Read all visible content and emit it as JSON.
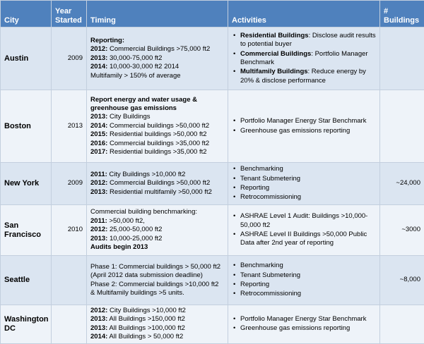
{
  "table": {
    "headers": [
      "City",
      "Year Started",
      "Timing",
      "Activities",
      "# Buildings"
    ],
    "rows": [
      {
        "city": "Austin",
        "year": 2009,
        "timing": [
          [
            {
              "text": "Reporting:",
              "bold": true
            }
          ],
          [
            {
              "text": "2012:",
              "bold": true
            },
            {
              "text": " Commercial Buildings >75,000 ft2",
              "bold": false
            }
          ],
          [
            {
              "text": "2013:",
              "bold": true
            },
            {
              "text": " 30,000-75,000 ft2",
              "bold": false
            }
          ],
          [
            {
              "text": "2014:",
              "bold": true
            },
            {
              "text": " 10,000-30,000 ft2 2014",
              "bold": false
            }
          ],
          [
            {
              "text": "Multifamily > 150% of average",
              "bold": false
            }
          ]
        ],
        "activities": [
          [
            {
              "text": "Residential Buildings",
              "bold": true
            },
            {
              "text": ": Disclose audit results to potential buyer",
              "bold": false
            }
          ],
          [
            {
              "text": "Commercial Buildings",
              "bold": true
            },
            {
              "text": ": Portfolio Manager Benchmark",
              "bold": false
            }
          ],
          [
            {
              "text": "Multifamily Buildings",
              "bold": true
            },
            {
              "text": ": Reduce energy by 20% & disclose performance",
              "bold": false
            }
          ]
        ],
        "buildings": null
      },
      {
        "city": "Boston",
        "year": 2013,
        "timing": [
          [
            {
              "text": "Report energy and water usage & greenhouse gas emissions",
              "bold": true
            }
          ],
          [
            {
              "text": "2013:",
              "bold": true
            },
            {
              "text": " City Buildings",
              "bold": false
            }
          ],
          [
            {
              "text": "2014:",
              "bold": true
            },
            {
              "text": " Commercial buildings >50,000 ft2",
              "bold": false
            }
          ],
          [
            {
              "text": "2015:",
              "bold": true
            },
            {
              "text": " Residential buildings >50,000 ft2",
              "bold": false
            }
          ],
          [
            {
              "text": "2016:",
              "bold": true
            },
            {
              "text": " Commercial buildings >35,000 ft2",
              "bold": false
            }
          ],
          [
            {
              "text": "2017:",
              "bold": true
            },
            {
              "text": " Residential buildings >35,000 ft2",
              "bold": false
            }
          ]
        ],
        "activities": [
          [
            {
              "text": "Portfolio Manager Energy Star Benchmark",
              "bold": false
            }
          ],
          [
            {
              "text": "Greenhouse gas emissions reporting",
              "bold": false
            }
          ]
        ],
        "buildings": null
      },
      {
        "city": "New York",
        "year": 2009,
        "timing": [
          [
            {
              "text": "2011:",
              "bold": true
            },
            {
              "text": " City Buildings >10,000 ft2",
              "bold": false
            }
          ],
          [
            {
              "text": "2012:",
              "bold": true
            },
            {
              "text": " Commercial Buildings >50,000 ft2",
              "bold": false
            }
          ],
          [
            {
              "text": "2013:",
              "bold": true
            },
            {
              "text": " Residential multifamily >50,000 ft2",
              "bold": false
            }
          ]
        ],
        "activities": [
          [
            {
              "text": "Benchmarking",
              "bold": false
            }
          ],
          [
            {
              "text": "Tenant Submetering",
              "bold": false
            }
          ],
          [
            {
              "text": "Reporting",
              "bold": false
            }
          ],
          [
            {
              "text": "Retrocommissioning",
              "bold": false
            }
          ]
        ],
        "buildings": "~24,000"
      },
      {
        "city": "San Francisco",
        "year": 2010,
        "timing": [
          [
            {
              "text": "Commercial building benchmarking:",
              "bold": false
            }
          ],
          [
            {
              "text": "2011:",
              "bold": true
            },
            {
              "text": " >50,000 ft2,",
              "bold": false
            }
          ],
          [
            {
              "text": "2012:",
              "bold": true
            },
            {
              "text": " 25,000-50,000 ft2",
              "bold": false
            }
          ],
          [
            {
              "text": "2013:",
              "bold": true
            },
            {
              "text": " 10,000-25,000 ft2",
              "bold": false
            }
          ],
          [
            {
              "text": "Audits begin 2013",
              "bold": true
            }
          ]
        ],
        "activities": [
          [
            {
              "text": "ASHRAE Level 1 Audit: Buildings >10,000-50,000 ft2",
              "bold": false
            }
          ],
          [
            {
              "text": "ASHRAE Level II Buildings >50,000 Public Data after 2nd year of reporting",
              "bold": false
            }
          ]
        ],
        "buildings": "~3000"
      },
      {
        "city": "Seattle",
        "year": null,
        "timing": [
          [
            {
              "text": "Phase 1: Commercial buildings > 50,000 ft2 (April 2012 data submission deadline)",
              "bold": false
            }
          ],
          [
            {
              "text": "Phase 2: Commercial buildings >10,000 ft2 & Multifamily buildings >5 units.",
              "bold": false
            }
          ]
        ],
        "activities": [
          [
            {
              "text": "Benchmarking",
              "bold": false
            }
          ],
          [
            {
              "text": "Tenant Submetering",
              "bold": false
            }
          ],
          [
            {
              "text": "Reporting",
              "bold": false
            }
          ],
          [
            {
              "text": "Retrocommissioning",
              "bold": false
            }
          ]
        ],
        "buildings": "~8,000"
      },
      {
        "city": "Washington DC",
        "year": null,
        "timing": [
          [
            {
              "text": "2012:",
              "bold": true
            },
            {
              "text": " City Buildings >10,000 ft2",
              "bold": false
            }
          ],
          [
            {
              "text": "2013:",
              "bold": true
            },
            {
              "text": " All Buildings >150,000 ft2",
              "bold": false
            }
          ],
          [
            {
              "text": "2013:",
              "bold": true
            },
            {
              "text": " All Buildings >100,000 ft2",
              "bold": false
            }
          ],
          [
            {
              "text": "2014:",
              "bold": true
            },
            {
              "text": " All Buildings > 50,000 ft2",
              "bold": false
            }
          ]
        ],
        "activities": [
          [
            {
              "text": "Portfolio Manager Energy Star Benchmark",
              "bold": false
            }
          ],
          [
            {
              "text": "Greenhouse gas emissions reporting",
              "bold": false
            }
          ]
        ],
        "buildings": null
      }
    ]
  }
}
